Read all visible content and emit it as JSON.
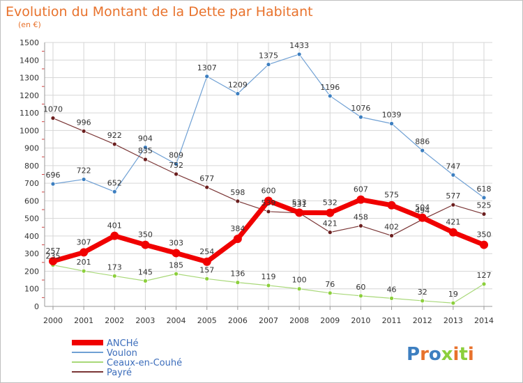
{
  "chart_data": {
    "type": "line",
    "title": "Evolution du Montant de la Dette par Habitant",
    "subtitle": "(en €)",
    "xlabel": "",
    "ylabel": "",
    "ylim": [
      0,
      1500
    ],
    "yticks": [
      0,
      100,
      200,
      300,
      400,
      500,
      600,
      700,
      800,
      900,
      1000,
      1100,
      1200,
      1300,
      1400,
      1500
    ],
    "grid": true,
    "legend_position": "bottom-left",
    "x": [
      "2000",
      "2001",
      "2002",
      "2003",
      "2004",
      "2005",
      "2006",
      "2007",
      "2008",
      "2009",
      "2010",
      "2011",
      "2012",
      "2013",
      "2014"
    ],
    "series": [
      {
        "name": "Voulon",
        "color": "#6fa0d4",
        "marker": "#3d7fc0",
        "width": 1.2,
        "radius": 3,
        "values": [
          696,
          722,
          652,
          904,
          809,
          1307,
          1209,
          1375,
          1433,
          1196,
          1076,
          1039,
          886,
          747,
          618
        ]
      },
      {
        "name": "Payré",
        "color": "#7a3535",
        "marker": "#6b1e1e",
        "width": 1.2,
        "radius": 3,
        "values": [
          1070,
          996,
          922,
          835,
          752,
          677,
          598,
          539,
          531,
          421,
          458,
          402,
          494,
          577,
          525
        ]
      },
      {
        "name": "Ceaux-en-Couhé",
        "color": "#a8d878",
        "marker": "#8ccf3c",
        "width": 1.2,
        "radius": 3,
        "values": [
          235,
          201,
          173,
          145,
          185,
          157,
          136,
          119,
          100,
          76,
          60,
          46,
          32,
          19,
          127
        ]
      },
      {
        "name": "ANCHé",
        "color": "#f00000",
        "marker": "#f00000",
        "width": 7,
        "radius": 6,
        "values": [
          257,
          307,
          401,
          350,
          303,
          254,
          384,
          600,
          533,
          532,
          607,
          575,
          504,
          421,
          350
        ]
      }
    ],
    "legend_order": [
      "ANCHé",
      "Voulon",
      "Ceaux-en-Couhé",
      "Payré"
    ]
  },
  "brand": {
    "text": "Proxiti"
  }
}
